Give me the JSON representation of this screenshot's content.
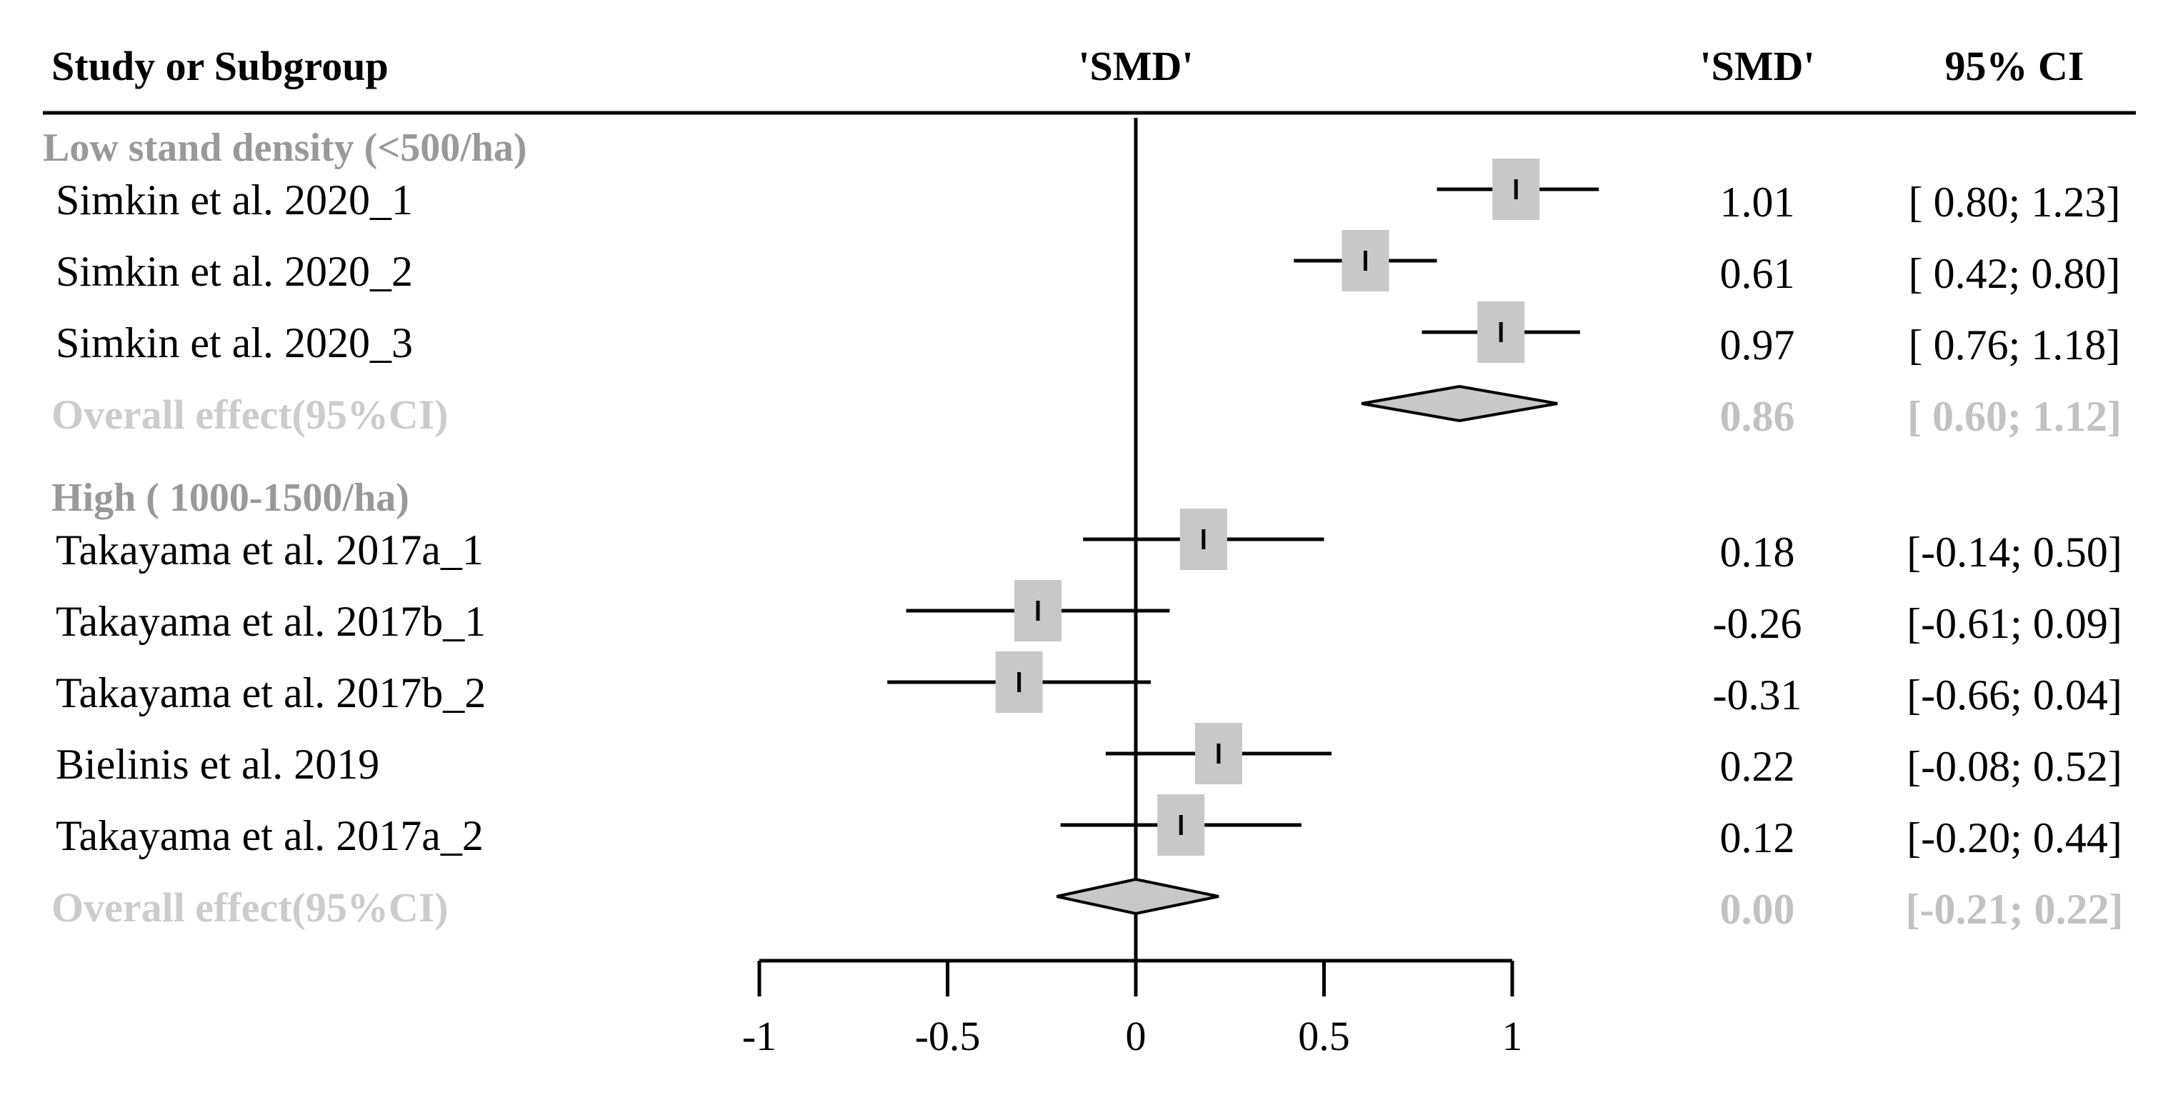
{
  "chart_data": {
    "type": "forest",
    "headers": {
      "study": "Study or Subgroup",
      "plot": "'SMD'",
      "smd": "'SMD'",
      "ci": "95% CI"
    },
    "xlim": [
      -1,
      1
    ],
    "x_ticks": [
      "-1",
      "-0.5",
      "0",
      "0.5",
      "1"
    ],
    "x_tick_values": [
      -1,
      -0.5,
      0,
      0.5,
      1
    ],
    "grid": false,
    "colors": {
      "box": "#c8c8c8",
      "line": "#000000",
      "subgroup_text": "#999999",
      "overall_text": "#cccccc",
      "diamond_fill": "#c8c8c8"
    },
    "groups": [
      {
        "label": "Low stand density (<500/ha)",
        "studies": [
          {
            "name": "Simkin et al. 2020_1",
            "smd": 1.01,
            "lower": 0.8,
            "upper": 1.23,
            "smd_label": "1.01",
            "ci_label": "[ 0.80; 1.23]"
          },
          {
            "name": "Simkin et al. 2020_2",
            "smd": 0.61,
            "lower": 0.42,
            "upper": 0.8,
            "smd_label": "0.61",
            "ci_label": "[ 0.42; 0.80]"
          },
          {
            "name": "Simkin et al. 2020_3",
            "smd": 0.97,
            "lower": 0.76,
            "upper": 1.18,
            "smd_label": "0.97",
            "ci_label": "[ 0.76; 1.18]"
          }
        ],
        "overall": {
          "label": "Overall effect(95%CI)",
          "smd": 0.86,
          "lower": 0.6,
          "upper": 1.12,
          "smd_label": "0.86",
          "ci_label": "[ 0.60; 1.12]"
        }
      },
      {
        "label": "High ( 1000-1500/ha)",
        "studies": [
          {
            "name": "Takayama et al. 2017a_1",
            "smd": 0.18,
            "lower": -0.14,
            "upper": 0.5,
            "smd_label": "0.18",
            "ci_label": "[-0.14; 0.50]"
          },
          {
            "name": "Takayama et al. 2017b_1",
            "smd": -0.26,
            "lower": -0.61,
            "upper": 0.09,
            "smd_label": "-0.26",
            "ci_label": "[-0.61; 0.09]"
          },
          {
            "name": "Takayama et al. 2017b_2",
            "smd": -0.31,
            "lower": -0.66,
            "upper": 0.04,
            "smd_label": "-0.31",
            "ci_label": "[-0.66; 0.04]"
          },
          {
            "name": "Bielinis et al. 2019",
            "smd": 0.22,
            "lower": -0.08,
            "upper": 0.52,
            "smd_label": "0.22",
            "ci_label": "[-0.08; 0.52]"
          },
          {
            "name": "Takayama et al. 2017a_2",
            "smd": 0.12,
            "lower": -0.2,
            "upper": 0.44,
            "smd_label": "0.12",
            "ci_label": "[-0.20; 0.44]"
          }
        ],
        "overall": {
          "label": "Overall effect(95%CI)",
          "smd": 0.0,
          "lower": -0.21,
          "upper": 0.22,
          "smd_label": "0.00",
          "ci_label": "[-0.21; 0.22]"
        }
      }
    ]
  }
}
